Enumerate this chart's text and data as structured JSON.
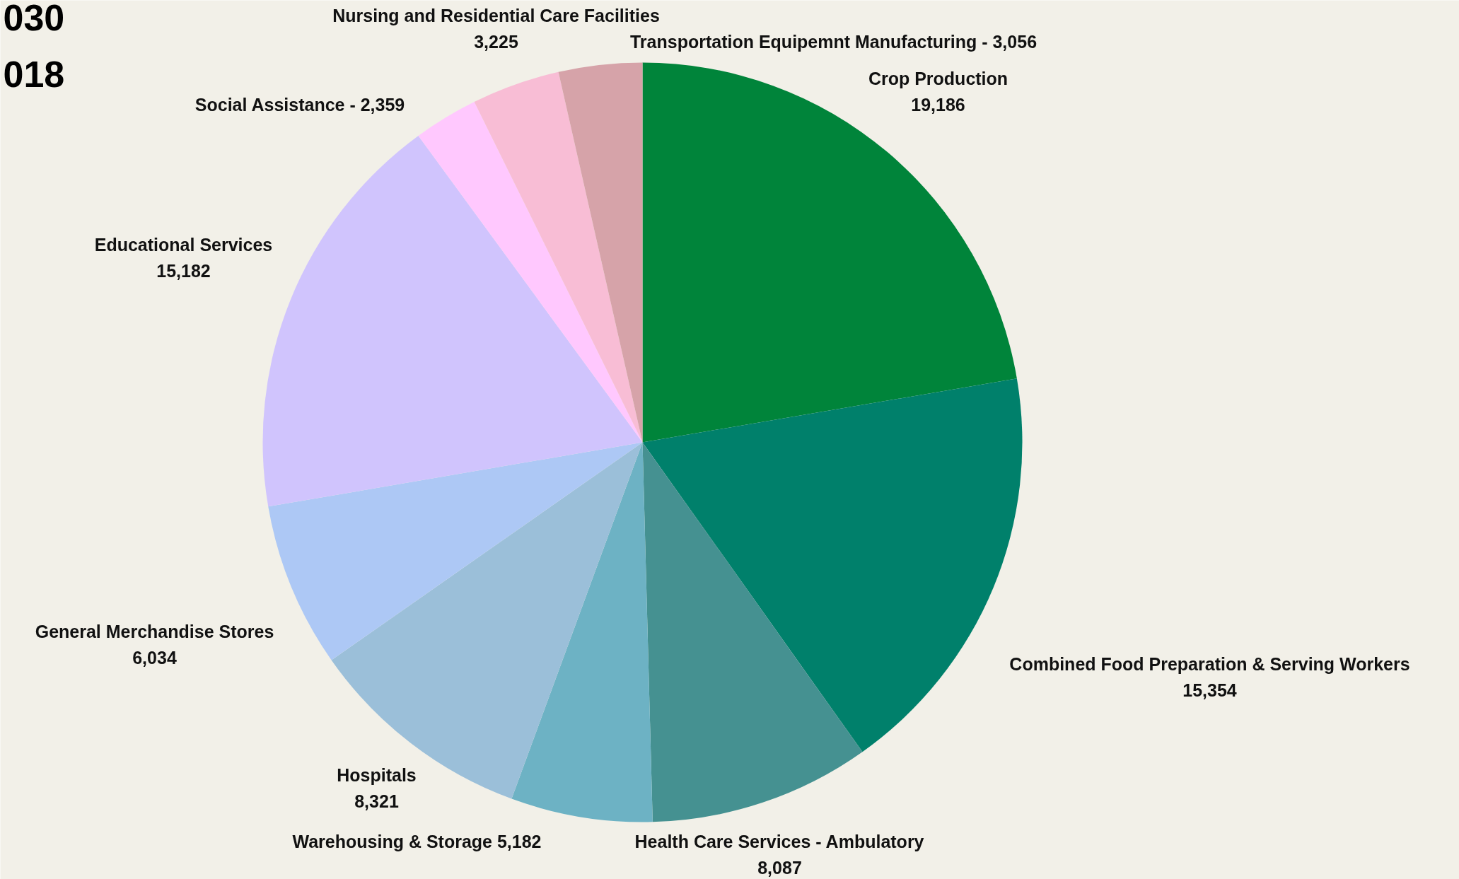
{
  "chart_data": {
    "type": "pie",
    "categories": [
      "Crop Production",
      "Combined Food Preparation & Serving Workers",
      "Health Care Services - Ambulatory",
      "Warehousing & Storage",
      "Hospitals",
      "General Merchandise Stores",
      "Educational Services",
      "Social Assistance -",
      "Nursing and Residential Care Facilities",
      "Transportation Equipemnt Manufacturing -"
    ],
    "values": [
      19186,
      15354,
      8087,
      5182,
      8321,
      6034,
      15182,
      2359,
      3225,
      3056
    ],
    "value_labels": [
      "19,186",
      "15,354",
      "8,087",
      "5,182",
      "8,321",
      "6,034",
      "15,182",
      "2,359",
      "3,225",
      "3,056"
    ],
    "colors": [
      "#00843a",
      "#00806b",
      "#459191",
      "#6db2c4",
      "#9bbfd9",
      "#adc8f5",
      "#d0c4fd",
      "#ffc8fe",
      "#f8bdd5",
      "#d6a3a9"
    ],
    "annotations": [
      "030",
      "018"
    ]
  }
}
